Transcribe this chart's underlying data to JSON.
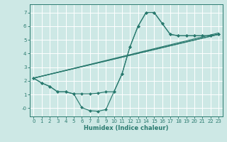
{
  "xlabel": "Humidex (Indice chaleur)",
  "bg_color": "#cde8e5",
  "grid_color": "#ffffff",
  "line_color": "#2a7a6f",
  "xlim": [
    -0.5,
    23.5
  ],
  "ylim": [
    -0.6,
    7.6
  ],
  "xticks": [
    0,
    1,
    2,
    3,
    4,
    5,
    6,
    7,
    8,
    9,
    10,
    11,
    12,
    13,
    14,
    15,
    16,
    17,
    18,
    19,
    20,
    21,
    22,
    23
  ],
  "yticks": [
    0,
    1,
    2,
    3,
    4,
    5,
    6,
    7
  ],
  "ytick_labels": [
    "-0",
    "1",
    "2",
    "3",
    "4",
    "5",
    "6",
    "7"
  ],
  "line1_x": [
    0,
    1,
    2,
    3,
    4,
    5,
    6,
    7,
    8,
    9,
    10,
    11,
    12,
    13,
    14,
    15,
    16,
    17,
    18,
    19,
    20,
    21,
    22,
    23
  ],
  "line1_y": [
    2.2,
    1.85,
    1.6,
    1.2,
    1.2,
    1.05,
    0.05,
    -0.18,
    -0.22,
    -0.1,
    1.2,
    2.5,
    4.5,
    6.0,
    7.0,
    7.0,
    6.2,
    5.4,
    5.3,
    5.3,
    5.3,
    5.3,
    5.3,
    5.4
  ],
  "line2_x": [
    0,
    1,
    2,
    3,
    4,
    5,
    6,
    7,
    8,
    9,
    10,
    11,
    12,
    13,
    14,
    15,
    16,
    17,
    18,
    19,
    20,
    21,
    22,
    23
  ],
  "line2_y": [
    2.2,
    1.85,
    1.6,
    1.2,
    1.2,
    1.05,
    1.05,
    1.05,
    1.1,
    1.2,
    1.2,
    2.5,
    4.5,
    6.0,
    7.0,
    7.0,
    6.2,
    5.4,
    5.3,
    5.3,
    5.3,
    5.3,
    5.3,
    5.4
  ],
  "line3_x": [
    0,
    23
  ],
  "line3_y": [
    2.2,
    5.4
  ],
  "line4_x": [
    0,
    23
  ],
  "line4_y": [
    2.2,
    5.4
  ],
  "line5_x": [
    0,
    23
  ],
  "line5_y": [
    2.2,
    5.5
  ]
}
